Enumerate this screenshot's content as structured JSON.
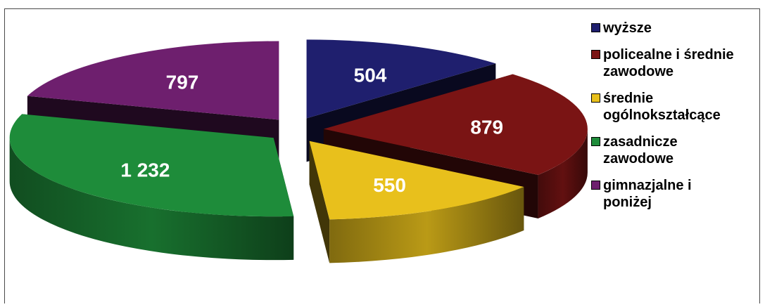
{
  "chart_data": {
    "type": "pie",
    "style": "3d-exploded",
    "categories": [
      "wyższe",
      "policealne i średnie\nzawodowe",
      "średnie\nogólnokształcące",
      "zasadnicze\nzawodowe",
      "gimnazjalne i\nponiżej"
    ],
    "values": [
      504,
      879,
      550,
      1232,
      797
    ],
    "data_labels": [
      "504",
      "879",
      "550",
      "1 232",
      "797"
    ],
    "colors": [
      "#1f1f6e",
      "#7a1414",
      "#e8c01c",
      "#1e8c3a",
      "#6e1f6e"
    ],
    "legend_position": "right"
  }
}
